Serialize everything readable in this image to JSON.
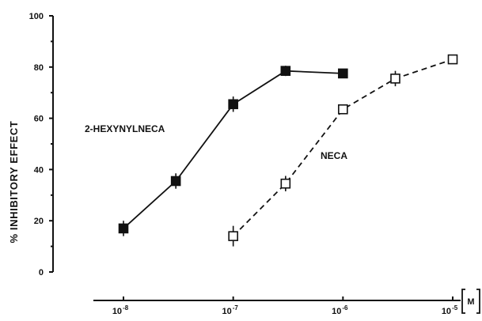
{
  "chart_data": {
    "type": "line",
    "xscale": "log",
    "ylabel": "% INHIBITORY EFFECT",
    "xunit": "M",
    "xlim": [
      1e-08,
      1e-05
    ],
    "ylim": [
      0,
      100
    ],
    "yticks": [
      "0",
      "20",
      "40",
      "60",
      "80",
      "100"
    ],
    "xticks": [
      {
        "base": "10",
        "exp": "-8",
        "value": 1e-08
      },
      {
        "base": "10",
        "exp": "-7",
        "value": 1e-07
      },
      {
        "base": "10",
        "exp": "-6",
        "value": 1e-06
      },
      {
        "base": "10",
        "exp": "-5",
        "value": 1e-05
      }
    ],
    "grid": false,
    "series": [
      {
        "name": "2-HEXYNYLNECA",
        "marker": "filled-square",
        "line": "solid",
        "x": [
          1e-08,
          3e-08,
          1e-07,
          3e-07,
          1e-06
        ],
        "y": [
          17,
          35.5,
          65.5,
          78.5,
          77.5
        ],
        "err": [
          3,
          3,
          3,
          2,
          1.5
        ]
      },
      {
        "name": "NECA",
        "marker": "open-square",
        "line": "dashed",
        "x": [
          1e-07,
          3e-07,
          1e-06,
          3e-06,
          1e-05
        ],
        "y": [
          14,
          34.5,
          63.5,
          75.5,
          83
        ],
        "err": [
          4,
          3,
          1.5,
          3,
          1
        ]
      }
    ]
  }
}
